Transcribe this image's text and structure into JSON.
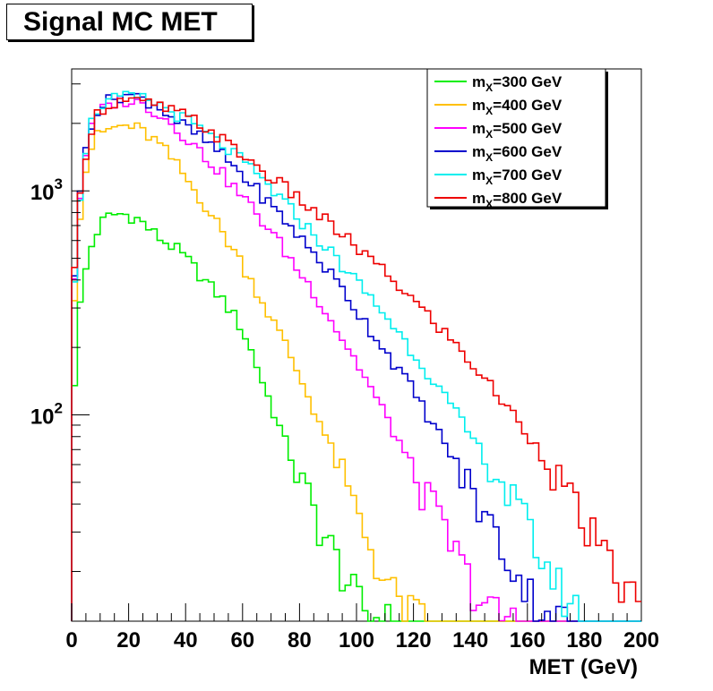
{
  "title": "Signal MC MET",
  "chart_data": {
    "type": "line",
    "style": "step-histogram",
    "title": "Signal MC MET",
    "xlabel": "MET (GeV)",
    "ylabel": "",
    "xlim": [
      0,
      200
    ],
    "ylim": [
      12,
      3500
    ],
    "yscale": "log",
    "bin_width": 2,
    "x_ticks": [
      0,
      20,
      40,
      60,
      80,
      100,
      120,
      140,
      160,
      180,
      200
    ],
    "y_tick_labels": [
      {
        "value": 100,
        "base": "10",
        "exp": "2"
      },
      {
        "value": 1000,
        "base": "10",
        "exp": "3"
      }
    ],
    "legend_position": "top-right",
    "series": [
      {
        "name": "m_X=300 GeV",
        "label_base": "m",
        "label_sub": "X",
        "label_rest": "=300 GeV",
        "color": "#00ee00",
        "knots": [
          [
            0,
            80
          ],
          [
            2,
            250
          ],
          [
            4,
            380
          ],
          [
            6,
            520
          ],
          [
            8,
            620
          ],
          [
            10,
            700
          ],
          [
            12,
            760
          ],
          [
            16,
            790
          ],
          [
            20,
            780
          ],
          [
            24,
            740
          ],
          [
            28,
            660
          ],
          [
            32,
            600
          ],
          [
            36,
            560
          ],
          [
            40,
            500
          ],
          [
            44,
            440
          ],
          [
            48,
            380
          ],
          [
            52,
            340
          ],
          [
            56,
            290
          ],
          [
            60,
            240
          ],
          [
            64,
            180
          ],
          [
            68,
            130
          ],
          [
            72,
            95
          ],
          [
            76,
            70
          ],
          [
            80,
            52
          ],
          [
            84,
            40
          ],
          [
            88,
            30
          ],
          [
            92,
            24
          ],
          [
            96,
            19
          ],
          [
            100,
            15
          ],
          [
            104,
            13
          ],
          [
            110,
            12
          ]
        ]
      },
      {
        "name": "m_X=400 GeV",
        "label_base": "m",
        "label_sub": "X",
        "label_rest": "=400 GeV",
        "color": "#ffc000",
        "knots": [
          [
            0,
            200
          ],
          [
            2,
            600
          ],
          [
            4,
            1050
          ],
          [
            6,
            1450
          ],
          [
            8,
            1700
          ],
          [
            10,
            1800
          ],
          [
            14,
            1900
          ],
          [
            18,
            1950
          ],
          [
            22,
            1930
          ],
          [
            26,
            1800
          ],
          [
            30,
            1650
          ],
          [
            34,
            1450
          ],
          [
            38,
            1250
          ],
          [
            42,
            1050
          ],
          [
            46,
            900
          ],
          [
            50,
            750
          ],
          [
            54,
            620
          ],
          [
            58,
            520
          ],
          [
            62,
            420
          ],
          [
            66,
            340
          ],
          [
            70,
            270
          ],
          [
            74,
            220
          ],
          [
            78,
            170
          ],
          [
            82,
            130
          ],
          [
            86,
            100
          ],
          [
            90,
            76
          ],
          [
            94,
            56
          ],
          [
            98,
            42
          ],
          [
            102,
            32
          ],
          [
            106,
            24
          ],
          [
            110,
            18
          ],
          [
            116,
            14
          ],
          [
            124,
            12
          ]
        ]
      },
      {
        "name": "m_X=500 GeV",
        "label_base": "m",
        "label_sub": "X",
        "label_rest": "=500 GeV",
        "color": "#ff00ff",
        "knots": [
          [
            0,
            250
          ],
          [
            2,
            700
          ],
          [
            4,
            1250
          ],
          [
            6,
            1750
          ],
          [
            8,
            2050
          ],
          [
            10,
            2250
          ],
          [
            14,
            2450
          ],
          [
            18,
            2550
          ],
          [
            22,
            2500
          ],
          [
            26,
            2400
          ],
          [
            30,
            2250
          ],
          [
            34,
            2050
          ],
          [
            38,
            1850
          ],
          [
            42,
            1650
          ],
          [
            46,
            1450
          ],
          [
            50,
            1300
          ],
          [
            54,
            1150
          ],
          [
            58,
            1000
          ],
          [
            62,
            880
          ],
          [
            66,
            760
          ],
          [
            70,
            660
          ],
          [
            74,
            560
          ],
          [
            78,
            470
          ],
          [
            82,
            400
          ],
          [
            86,
            340
          ],
          [
            90,
            280
          ],
          [
            94,
            230
          ],
          [
            98,
            190
          ],
          [
            102,
            155
          ],
          [
            106,
            125
          ],
          [
            110,
            100
          ],
          [
            114,
            80
          ],
          [
            118,
            64
          ],
          [
            122,
            50
          ],
          [
            126,
            40
          ],
          [
            130,
            32
          ],
          [
            134,
            25
          ],
          [
            138,
            20
          ],
          [
            142,
            16
          ],
          [
            148,
            13
          ],
          [
            156,
            12
          ]
        ]
      },
      {
        "name": "m_X=600 GeV",
        "label_base": "m",
        "label_sub": "X",
        "label_rest": "=600 GeV",
        "color": "#0000cc",
        "knots": [
          [
            0,
            270
          ],
          [
            2,
            700
          ],
          [
            4,
            1300
          ],
          [
            6,
            1850
          ],
          [
            8,
            2200
          ],
          [
            10,
            2400
          ],
          [
            14,
            2550
          ],
          [
            18,
            2700
          ],
          [
            22,
            2650
          ],
          [
            26,
            2550
          ],
          [
            30,
            2400
          ],
          [
            34,
            2200
          ],
          [
            38,
            2000
          ],
          [
            42,
            1850
          ],
          [
            46,
            1700
          ],
          [
            50,
            1550
          ],
          [
            54,
            1400
          ],
          [
            58,
            1250
          ],
          [
            62,
            1100
          ],
          [
            66,
            980
          ],
          [
            70,
            860
          ],
          [
            74,
            760
          ],
          [
            78,
            670
          ],
          [
            82,
            580
          ],
          [
            86,
            510
          ],
          [
            90,
            440
          ],
          [
            94,
            380
          ],
          [
            98,
            320
          ],
          [
            102,
            270
          ],
          [
            106,
            230
          ],
          [
            110,
            195
          ],
          [
            114,
            165
          ],
          [
            118,
            140
          ],
          [
            122,
            115
          ],
          [
            126,
            95
          ],
          [
            130,
            78
          ],
          [
            134,
            64
          ],
          [
            138,
            52
          ],
          [
            142,
            42
          ],
          [
            146,
            34
          ],
          [
            150,
            27
          ],
          [
            154,
            22
          ],
          [
            158,
            18
          ],
          [
            164,
            14
          ],
          [
            172,
            12
          ]
        ]
      },
      {
        "name": "m_X=700 GeV",
        "label_base": "m",
        "label_sub": "X",
        "label_rest": "=700 GeV",
        "color": "#00eeee",
        "knots": [
          [
            0,
            250
          ],
          [
            2,
            700
          ],
          [
            4,
            1300
          ],
          [
            6,
            1850
          ],
          [
            8,
            2200
          ],
          [
            10,
            2400
          ],
          [
            14,
            2550
          ],
          [
            18,
            2600
          ],
          [
            22,
            2600
          ],
          [
            26,
            2550
          ],
          [
            30,
            2450
          ],
          [
            34,
            2300
          ],
          [
            38,
            2150
          ],
          [
            42,
            2000
          ],
          [
            46,
            1850
          ],
          [
            50,
            1700
          ],
          [
            54,
            1560
          ],
          [
            58,
            1420
          ],
          [
            62,
            1280
          ],
          [
            66,
            1150
          ],
          [
            70,
            1020
          ],
          [
            74,
            900
          ],
          [
            78,
            800
          ],
          [
            82,
            700
          ],
          [
            86,
            620
          ],
          [
            90,
            550
          ],
          [
            94,
            480
          ],
          [
            98,
            420
          ],
          [
            102,
            370
          ],
          [
            106,
            320
          ],
          [
            110,
            280
          ],
          [
            114,
            240
          ],
          [
            118,
            205
          ],
          [
            122,
            175
          ],
          [
            126,
            150
          ],
          [
            130,
            125
          ],
          [
            134,
            105
          ],
          [
            138,
            88
          ],
          [
            142,
            74
          ],
          [
            146,
            62
          ],
          [
            150,
            52
          ],
          [
            154,
            43
          ],
          [
            158,
            35
          ],
          [
            162,
            28
          ],
          [
            166,
            22
          ],
          [
            170,
            18
          ],
          [
            174,
            15
          ],
          [
            180,
            12
          ]
        ]
      },
      {
        "name": "m_X=800 GeV",
        "label_base": "m",
        "label_sub": "X",
        "label_rest": "=800 GeV",
        "color": "#ee0000",
        "knots": [
          [
            0,
            260
          ],
          [
            2,
            700
          ],
          [
            4,
            1250
          ],
          [
            6,
            1750
          ],
          [
            8,
            2100
          ],
          [
            10,
            2300
          ],
          [
            14,
            2450
          ],
          [
            18,
            2550
          ],
          [
            22,
            2500
          ],
          [
            26,
            2450
          ],
          [
            30,
            2400
          ],
          [
            34,
            2300
          ],
          [
            38,
            2200
          ],
          [
            42,
            2100
          ],
          [
            46,
            1950
          ],
          [
            50,
            1800
          ],
          [
            54,
            1650
          ],
          [
            58,
            1500
          ],
          [
            62,
            1380
          ],
          [
            66,
            1260
          ],
          [
            70,
            1150
          ],
          [
            74,
            1050
          ],
          [
            78,
            960
          ],
          [
            82,
            870
          ],
          [
            86,
            790
          ],
          [
            90,
            720
          ],
          [
            94,
            650
          ],
          [
            98,
            590
          ],
          [
            102,
            530
          ],
          [
            106,
            480
          ],
          [
            110,
            430
          ],
          [
            114,
            385
          ],
          [
            118,
            345
          ],
          [
            122,
            305
          ],
          [
            126,
            270
          ],
          [
            130,
            240
          ],
          [
            134,
            210
          ],
          [
            138,
            185
          ],
          [
            142,
            160
          ],
          [
            146,
            140
          ],
          [
            150,
            120
          ],
          [
            154,
            104
          ],
          [
            158,
            90
          ],
          [
            162,
            76
          ],
          [
            166,
            64
          ],
          [
            170,
            54
          ],
          [
            174,
            44
          ],
          [
            178,
            36
          ],
          [
            182,
            30
          ],
          [
            186,
            24
          ],
          [
            190,
            20
          ],
          [
            194,
            17
          ],
          [
            198,
            15
          ],
          [
            200,
            14
          ]
        ]
      }
    ]
  }
}
